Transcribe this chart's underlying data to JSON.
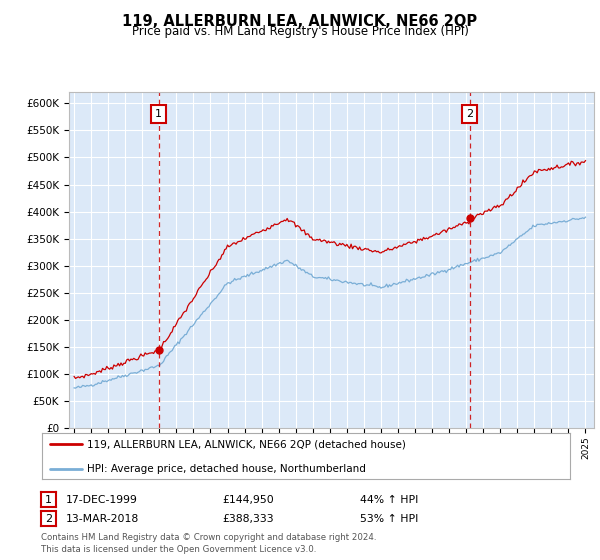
{
  "title": "119, ALLERBURN LEA, ALNWICK, NE66 2QP",
  "subtitle": "Price paid vs. HM Land Registry's House Price Index (HPI)",
  "background_color": "#ffffff",
  "plot_bg_color": "#dce9f8",
  "grid_color": "#ffffff",
  "ylim": [
    0,
    620000
  ],
  "ytick_labels": [
    "£0",
    "£50K",
    "£100K",
    "£150K",
    "£200K",
    "£250K",
    "£300K",
    "£350K",
    "£400K",
    "£450K",
    "£500K",
    "£550K",
    "£600K"
  ],
  "sale1_date_label": "17-DEC-1999",
  "sale1_price": 144950,
  "sale1_price_str": "£144,950",
  "sale1_hpi_pct": "44% ↑ HPI",
  "sale1_x": 1999.96,
  "sale2_date_label": "13-MAR-2018",
  "sale2_price": 388333,
  "sale2_price_str": "£388,333",
  "sale2_hpi_pct": "53% ↑ HPI",
  "sale2_x": 2018.21,
  "legend1_label": "119, ALLERBURN LEA, ALNWICK, NE66 2QP (detached house)",
  "legend2_label": "HPI: Average price, detached house, Northumberland",
  "footer_line1": "Contains HM Land Registry data © Crown copyright and database right 2024.",
  "footer_line2": "This data is licensed under the Open Government Licence v3.0.",
  "red_line_color": "#cc0000",
  "blue_line_color": "#7aaed6",
  "dashed_line_color": "#cc0000",
  "xstart": 1995,
  "xend": 2025
}
